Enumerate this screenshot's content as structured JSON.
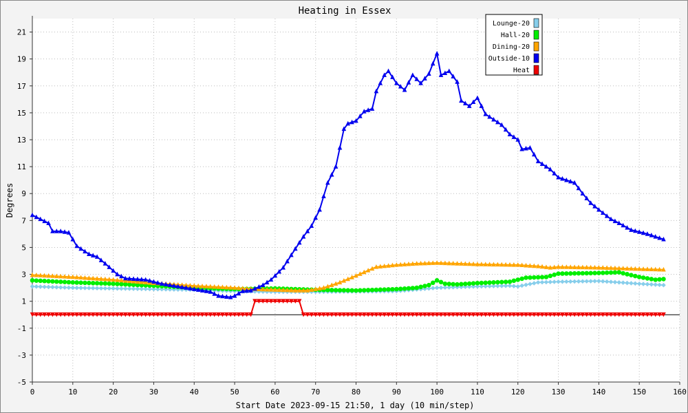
{
  "chart_data": {
    "type": "line",
    "title": "Heating in Essex",
    "xlabel": "Start Date 2023-09-15 21:50, 1 day (10 min/step)",
    "ylabel": "Degrees",
    "xlim": [
      0,
      160
    ],
    "ylim": [
      -5,
      22
    ],
    "x_ticks": [
      0,
      10,
      20,
      30,
      40,
      50,
      60,
      70,
      80,
      90,
      100,
      110,
      120,
      130,
      140,
      150,
      160
    ],
    "y_ticks": [
      -5,
      -3,
      -1,
      1,
      3,
      5,
      7,
      9,
      11,
      13,
      15,
      17,
      19,
      21
    ],
    "grid": true,
    "legend_position": "top-right",
    "series": [
      {
        "name": "Lounge-20",
        "color": "#87ceeb",
        "marker": "diamond",
        "points": [
          [
            0,
            2.1
          ],
          [
            10,
            2.0
          ],
          [
            20,
            1.95
          ],
          [
            30,
            1.9
          ],
          [
            40,
            1.85
          ],
          [
            50,
            1.75
          ],
          [
            60,
            1.7
          ],
          [
            70,
            1.7
          ],
          [
            80,
            1.72
          ],
          [
            90,
            1.75
          ],
          [
            100,
            2.0
          ],
          [
            110,
            2.1
          ],
          [
            118,
            2.15
          ],
          [
            120,
            2.1
          ],
          [
            125,
            2.4
          ],
          [
            130,
            2.45
          ],
          [
            140,
            2.5
          ],
          [
            145,
            2.4
          ],
          [
            150,
            2.3
          ],
          [
            156,
            2.2
          ]
        ]
      },
      {
        "name": "Hall-20",
        "color": "#00ee00",
        "marker": "circle",
        "points": [
          [
            0,
            2.55
          ],
          [
            10,
            2.4
          ],
          [
            20,
            2.3
          ],
          [
            30,
            2.15
          ],
          [
            40,
            2.0
          ],
          [
            50,
            1.9
          ],
          [
            60,
            1.95
          ],
          [
            70,
            1.85
          ],
          [
            80,
            1.8
          ],
          [
            90,
            1.9
          ],
          [
            95,
            2.0
          ],
          [
            98,
            2.2
          ],
          [
            100,
            2.55
          ],
          [
            102,
            2.3
          ],
          [
            105,
            2.25
          ],
          [
            110,
            2.35
          ],
          [
            118,
            2.45
          ],
          [
            122,
            2.75
          ],
          [
            127,
            2.8
          ],
          [
            130,
            3.05
          ],
          [
            140,
            3.1
          ],
          [
            145,
            3.15
          ],
          [
            150,
            2.8
          ],
          [
            154,
            2.6
          ],
          [
            156,
            2.65
          ]
        ]
      },
      {
        "name": "Dining-20",
        "color": "#ffa500",
        "marker": "triangle",
        "points": [
          [
            0,
            2.95
          ],
          [
            10,
            2.8
          ],
          [
            20,
            2.6
          ],
          [
            30,
            2.35
          ],
          [
            40,
            2.15
          ],
          [
            50,
            2.0
          ],
          [
            55,
            1.9
          ],
          [
            60,
            1.85
          ],
          [
            65,
            1.8
          ],
          [
            68,
            1.8
          ],
          [
            72,
            2.0
          ],
          [
            76,
            2.4
          ],
          [
            80,
            2.9
          ],
          [
            85,
            3.55
          ],
          [
            90,
            3.7
          ],
          [
            95,
            3.8
          ],
          [
            100,
            3.85
          ],
          [
            110,
            3.75
          ],
          [
            120,
            3.7
          ],
          [
            125,
            3.6
          ],
          [
            128,
            3.5
          ],
          [
            130,
            3.55
          ],
          [
            140,
            3.5
          ],
          [
            150,
            3.4
          ],
          [
            156,
            3.35
          ]
        ]
      },
      {
        "name": "Outside-10",
        "color": "#0000ee",
        "marker": "triangle",
        "points": [
          [
            0,
            7.4
          ],
          [
            2,
            7.1
          ],
          [
            4,
            6.8
          ],
          [
            5,
            6.2
          ],
          [
            7,
            6.2
          ],
          [
            9,
            6.1
          ],
          [
            11,
            5.1
          ],
          [
            14,
            4.5
          ],
          [
            16,
            4.3
          ],
          [
            18,
            3.8
          ],
          [
            21,
            3.0
          ],
          [
            23,
            2.7
          ],
          [
            28,
            2.6
          ],
          [
            32,
            2.3
          ],
          [
            38,
            2.0
          ],
          [
            44,
            1.7
          ],
          [
            46,
            1.4
          ],
          [
            49,
            1.3
          ],
          [
            50,
            1.4
          ],
          [
            52,
            1.75
          ],
          [
            54,
            1.8
          ],
          [
            57,
            2.2
          ],
          [
            59,
            2.6
          ],
          [
            62,
            3.5
          ],
          [
            65,
            4.9
          ],
          [
            67,
            5.8
          ],
          [
            69,
            6.6
          ],
          [
            71,
            7.8
          ],
          [
            73,
            9.8
          ],
          [
            75,
            11.0
          ],
          [
            77,
            13.8
          ],
          [
            78,
            14.2
          ],
          [
            80,
            14.4
          ],
          [
            82,
            15.1
          ],
          [
            84,
            15.3
          ],
          [
            85,
            16.6
          ],
          [
            87,
            17.8
          ],
          [
            88,
            18.1
          ],
          [
            90,
            17.2
          ],
          [
            92,
            16.7
          ],
          [
            94,
            17.8
          ],
          [
            96,
            17.2
          ],
          [
            98,
            17.9
          ],
          [
            100,
            19.4
          ],
          [
            101,
            17.8
          ],
          [
            103,
            18.1
          ],
          [
            105,
            17.3
          ],
          [
            106,
            15.9
          ],
          [
            108,
            15.5
          ],
          [
            110,
            16.1
          ],
          [
            112,
            14.9
          ],
          [
            116,
            14.1
          ],
          [
            118,
            13.4
          ],
          [
            120,
            13.0
          ],
          [
            121,
            12.3
          ],
          [
            123,
            12.4
          ],
          [
            125,
            11.4
          ],
          [
            128,
            10.8
          ],
          [
            130,
            10.2
          ],
          [
            132,
            10.0
          ],
          [
            134,
            9.8
          ],
          [
            136,
            9.0
          ],
          [
            138,
            8.3
          ],
          [
            140,
            7.8
          ],
          [
            143,
            7.1
          ],
          [
            145,
            6.8
          ],
          [
            148,
            6.3
          ],
          [
            152,
            6.0
          ],
          [
            154,
            5.8
          ],
          [
            156,
            5.6
          ]
        ]
      },
      {
        "name": "Heat",
        "color": "#ee0000",
        "marker": "triangle-down",
        "points": [
          [
            0,
            0
          ],
          [
            54,
            0
          ],
          [
            55,
            1
          ],
          [
            66,
            1
          ],
          [
            67,
            0
          ],
          [
            156,
            0
          ]
        ]
      }
    ]
  }
}
